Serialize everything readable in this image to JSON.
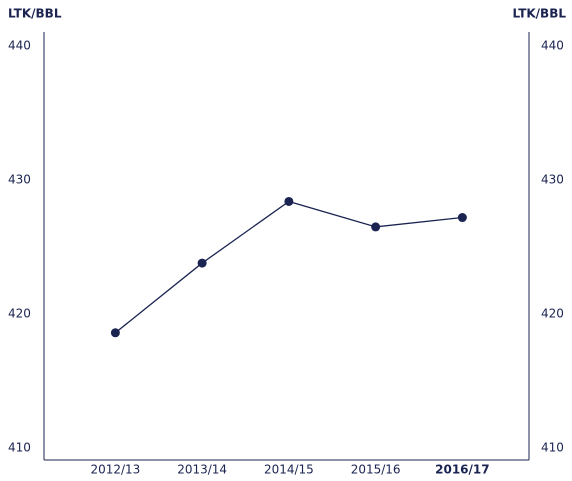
{
  "chart_data": {
    "type": "line",
    "y_label": "LTK/BBL",
    "y2_label": "LTK/BBL",
    "categories": [
      "2012/13",
      "2013/14",
      "2014/15",
      "2015/16",
      "2016/17"
    ],
    "series": [
      {
        "name": "LTK/BBL",
        "color": "#1b2451",
        "values": [
          418.6,
          423.8,
          428.4,
          426.5,
          427.2
        ]
      }
    ],
    "ylim": [
      410,
      440
    ],
    "yticks": [
      410,
      420,
      430,
      440
    ],
    "y2lim": [
      410,
      440
    ],
    "y2ticks": [
      410,
      420,
      430,
      440
    ],
    "grid": false
  }
}
